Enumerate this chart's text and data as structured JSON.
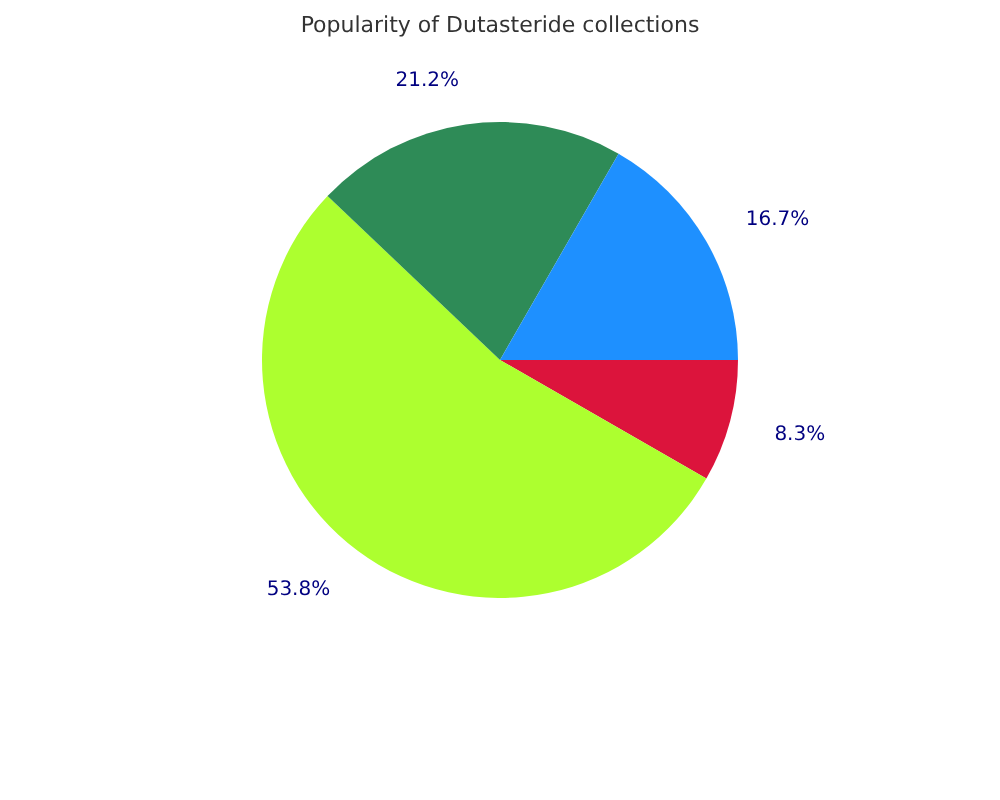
{
  "chart_data": {
    "type": "pie",
    "title": "Popularity of Dutasteride collections",
    "categories": [
      null,
      null,
      null,
      null
    ],
    "values": [
      8.3,
      53.8,
      21.2,
      16.7
    ],
    "value_labels": [
      "8.3%",
      "53.8%",
      "21.2%",
      "16.7%"
    ],
    "colors": [
      "#dc143c",
      "#adff2f",
      "#2e8b57",
      "#1e90ff"
    ]
  }
}
